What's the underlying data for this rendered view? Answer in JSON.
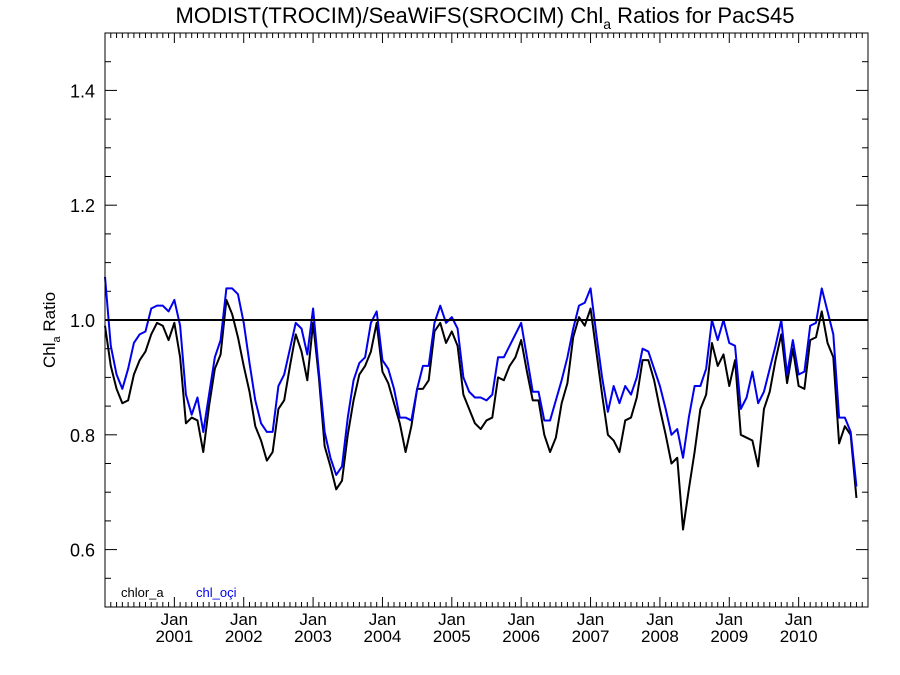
{
  "chart_data": {
    "type": "line",
    "title": "MODIST(TROCIM)/SeaWiFS(SROCIM)  Chl",
    "title_subscript": "a",
    "title_suffix": " Ratios for PacS45",
    "ylabel": "Chl",
    "ylabel_subscript": "a",
    "ylabel_suffix": " Ratio",
    "ylim": [
      0.5,
      1.5
    ],
    "y_ticks": [
      0.6,
      0.8,
      1.0,
      1.2,
      1.4
    ],
    "y_tick_labels": [
      "0.6",
      "0.8",
      "1.0",
      "1.2",
      "1.4"
    ],
    "x_range": [
      "2000-01",
      "2010-12"
    ],
    "x_ticks": [
      {
        "month": "Jan",
        "year": "2001",
        "date": "2001-01"
      },
      {
        "month": "Jan",
        "year": "2002",
        "date": "2002-01"
      },
      {
        "month": "Jan",
        "year": "2003",
        "date": "2003-01"
      },
      {
        "month": "Jan",
        "year": "2004",
        "date": "2004-01"
      },
      {
        "month": "Jan",
        "year": "2005",
        "date": "2005-01"
      },
      {
        "month": "Jan",
        "year": "2006",
        "date": "2006-01"
      },
      {
        "month": "Jan",
        "year": "2007",
        "date": "2007-01"
      },
      {
        "month": "Jan",
        "year": "2008",
        "date": "2008-01"
      },
      {
        "month": "Jan",
        "year": "2009",
        "date": "2009-01"
      },
      {
        "month": "Jan",
        "year": "2010",
        "date": "2010-01"
      }
    ],
    "reference_line": 1.0,
    "grid": false,
    "legend_position": "bottom-left",
    "series": [
      {
        "name": "chlor_a",
        "color": "#000000",
        "points": [
          [
            "2000-01",
            0.99
          ],
          [
            "2000-02",
            0.92
          ],
          [
            "2000-03",
            0.88
          ],
          [
            "2000-04",
            0.855
          ],
          [
            "2000-05",
            0.86
          ],
          [
            "2000-06",
            0.905
          ],
          [
            "2000-07",
            0.93
          ],
          [
            "2000-08",
            0.945
          ],
          [
            "2000-09",
            0.975
          ],
          [
            "2000-10",
            0.995
          ],
          [
            "2000-11",
            0.99
          ],
          [
            "2000-12",
            0.965
          ],
          [
            "2001-01",
            0.995
          ],
          [
            "2001-02",
            0.935
          ],
          [
            "2001-03",
            0.82
          ],
          [
            "2001-04",
            0.83
          ],
          [
            "2001-05",
            0.825
          ],
          [
            "2001-06",
            0.77
          ],
          [
            "2001-07",
            0.85
          ],
          [
            "2001-08",
            0.915
          ],
          [
            "2001-09",
            0.94
          ],
          [
            "2001-10",
            1.035
          ],
          [
            "2001-11",
            1.01
          ],
          [
            "2001-12",
            0.97
          ],
          [
            "2002-01",
            0.92
          ],
          [
            "2002-02",
            0.875
          ],
          [
            "2002-03",
            0.815
          ],
          [
            "2002-04",
            0.79
          ],
          [
            "2002-05",
            0.755
          ],
          [
            "2002-06",
            0.77
          ],
          [
            "2002-07",
            0.845
          ],
          [
            "2002-08",
            0.86
          ],
          [
            "2002-09",
            0.92
          ],
          [
            "2002-10",
            0.975
          ],
          [
            "2002-11",
            0.945
          ],
          [
            "2002-12",
            0.895
          ],
          [
            "2003-01",
            0.995
          ],
          [
            "2003-02",
            0.9
          ],
          [
            "2003-03",
            0.78
          ],
          [
            "2003-04",
            0.745
          ],
          [
            "2003-05",
            0.705
          ],
          [
            "2003-06",
            0.72
          ],
          [
            "2003-07",
            0.8
          ],
          [
            "2003-08",
            0.86
          ],
          [
            "2003-09",
            0.905
          ],
          [
            "2003-10",
            0.92
          ],
          [
            "2003-11",
            0.945
          ],
          [
            "2003-12",
            0.995
          ],
          [
            "2004-01",
            0.91
          ],
          [
            "2004-02",
            0.89
          ],
          [
            "2004-03",
            0.855
          ],
          [
            "2004-04",
            0.82
          ],
          [
            "2004-05",
            0.77
          ],
          [
            "2004-06",
            0.815
          ],
          [
            "2004-07",
            0.88
          ],
          [
            "2004-08",
            0.88
          ],
          [
            "2004-09",
            0.895
          ],
          [
            "2004-10",
            0.98
          ],
          [
            "2004-11",
            0.995
          ],
          [
            "2004-12",
            0.96
          ],
          [
            "2005-01",
            0.98
          ],
          [
            "2005-02",
            0.955
          ],
          [
            "2005-03",
            0.87
          ],
          [
            "2005-04",
            0.845
          ],
          [
            "2005-05",
            0.82
          ],
          [
            "2005-06",
            0.81
          ],
          [
            "2005-07",
            0.825
          ],
          [
            "2005-08",
            0.83
          ],
          [
            "2005-09",
            0.9
          ],
          [
            "2005-10",
            0.895
          ],
          [
            "2005-11",
            0.92
          ],
          [
            "2005-12",
            0.935
          ],
          [
            "2006-01",
            0.965
          ],
          [
            "2006-02",
            0.91
          ],
          [
            "2006-03",
            0.86
          ],
          [
            "2006-04",
            0.86
          ],
          [
            "2006-05",
            0.8
          ],
          [
            "2006-06",
            0.77
          ],
          [
            "2006-07",
            0.795
          ],
          [
            "2006-08",
            0.855
          ],
          [
            "2006-09",
            0.89
          ],
          [
            "2006-10",
            0.97
          ],
          [
            "2006-11",
            1.005
          ],
          [
            "2006-12",
            0.99
          ],
          [
            "2007-01",
            1.02
          ],
          [
            "2007-02",
            0.945
          ],
          [
            "2007-03",
            0.87
          ],
          [
            "2007-04",
            0.8
          ],
          [
            "2007-05",
            0.79
          ],
          [
            "2007-06",
            0.77
          ],
          [
            "2007-07",
            0.825
          ],
          [
            "2007-08",
            0.83
          ],
          [
            "2007-09",
            0.865
          ],
          [
            "2007-10",
            0.93
          ],
          [
            "2007-11",
            0.93
          ],
          [
            "2007-12",
            0.895
          ],
          [
            "2008-01",
            0.845
          ],
          [
            "2008-02",
            0.8
          ],
          [
            "2008-03",
            0.75
          ],
          [
            "2008-04",
            0.76
          ],
          [
            "2008-05",
            0.635
          ],
          [
            "2008-06",
            0.705
          ],
          [
            "2008-07",
            0.77
          ],
          [
            "2008-08",
            0.845
          ],
          [
            "2008-09",
            0.87
          ],
          [
            "2008-10",
            0.96
          ],
          [
            "2008-11",
            0.92
          ],
          [
            "2008-12",
            0.94
          ],
          [
            "2009-01",
            0.885
          ],
          [
            "2009-02",
            0.93
          ],
          [
            "2009-03",
            0.8
          ],
          [
            "2009-04",
            0.795
          ],
          [
            "2009-05",
            0.79
          ],
          [
            "2009-06",
            0.745
          ],
          [
            "2009-07",
            0.845
          ],
          [
            "2009-08",
            0.875
          ],
          [
            "2009-09",
            0.93
          ],
          [
            "2009-10",
            0.975
          ],
          [
            "2009-11",
            0.89
          ],
          [
            "2009-12",
            0.95
          ],
          [
            "2010-01",
            0.885
          ],
          [
            "2010-02",
            0.88
          ],
          [
            "2010-03",
            0.965
          ],
          [
            "2010-04",
            0.97
          ],
          [
            "2010-05",
            1.015
          ],
          [
            "2010-06",
            0.96
          ],
          [
            "2010-07",
            0.935
          ],
          [
            "2010-08",
            0.785
          ],
          [
            "2010-09",
            0.815
          ],
          [
            "2010-10",
            0.8
          ],
          [
            "2010-11",
            0.69
          ]
        ]
      },
      {
        "name": "chl_oçi",
        "color": "#0000ee",
        "points": [
          [
            "2000-01",
            1.075
          ],
          [
            "2000-02",
            0.955
          ],
          [
            "2000-03",
            0.905
          ],
          [
            "2000-04",
            0.88
          ],
          [
            "2000-05",
            0.915
          ],
          [
            "2000-06",
            0.96
          ],
          [
            "2000-07",
            0.975
          ],
          [
            "2000-08",
            0.98
          ],
          [
            "2000-09",
            1.02
          ],
          [
            "2000-10",
            1.025
          ],
          [
            "2000-11",
            1.025
          ],
          [
            "2000-12",
            1.015
          ],
          [
            "2001-01",
            1.035
          ],
          [
            "2001-02",
            0.99
          ],
          [
            "2001-03",
            0.87
          ],
          [
            "2001-04",
            0.835
          ],
          [
            "2001-05",
            0.865
          ],
          [
            "2001-06",
            0.805
          ],
          [
            "2001-07",
            0.87
          ],
          [
            "2001-08",
            0.935
          ],
          [
            "2001-09",
            0.965
          ],
          [
            "2001-10",
            1.055
          ],
          [
            "2001-11",
            1.055
          ],
          [
            "2001-12",
            1.045
          ],
          [
            "2002-01",
            0.995
          ],
          [
            "2002-02",
            0.925
          ],
          [
            "2002-03",
            0.86
          ],
          [
            "2002-04",
            0.82
          ],
          [
            "2002-05",
            0.805
          ],
          [
            "2002-06",
            0.805
          ],
          [
            "2002-07",
            0.885
          ],
          [
            "2002-08",
            0.905
          ],
          [
            "2002-09",
            0.95
          ],
          [
            "2002-10",
            0.995
          ],
          [
            "2002-11",
            0.985
          ],
          [
            "2002-12",
            0.94
          ],
          [
            "2003-01",
            1.02
          ],
          [
            "2003-02",
            0.91
          ],
          [
            "2003-03",
            0.805
          ],
          [
            "2003-04",
            0.76
          ],
          [
            "2003-05",
            0.73
          ],
          [
            "2003-06",
            0.745
          ],
          [
            "2003-07",
            0.83
          ],
          [
            "2003-08",
            0.895
          ],
          [
            "2003-09",
            0.925
          ],
          [
            "2003-10",
            0.935
          ],
          [
            "2003-11",
            0.995
          ],
          [
            "2003-12",
            1.015
          ],
          [
            "2004-01",
            0.93
          ],
          [
            "2004-02",
            0.915
          ],
          [
            "2004-03",
            0.88
          ],
          [
            "2004-04",
            0.83
          ],
          [
            "2004-05",
            0.83
          ],
          [
            "2004-06",
            0.825
          ],
          [
            "2004-07",
            0.88
          ],
          [
            "2004-08",
            0.92
          ],
          [
            "2004-09",
            0.92
          ],
          [
            "2004-10",
            0.995
          ],
          [
            "2004-11",
            1.025
          ],
          [
            "2004-12",
            0.995
          ],
          [
            "2005-01",
            1.005
          ],
          [
            "2005-02",
            0.985
          ],
          [
            "2005-03",
            0.9
          ],
          [
            "2005-04",
            0.875
          ],
          [
            "2005-05",
            0.865
          ],
          [
            "2005-06",
            0.865
          ],
          [
            "2005-07",
            0.86
          ],
          [
            "2005-08",
            0.87
          ],
          [
            "2005-09",
            0.935
          ],
          [
            "2005-10",
            0.935
          ],
          [
            "2005-11",
            0.955
          ],
          [
            "2005-12",
            0.975
          ],
          [
            "2006-01",
            0.995
          ],
          [
            "2006-02",
            0.935
          ],
          [
            "2006-03",
            0.875
          ],
          [
            "2006-04",
            0.875
          ],
          [
            "2006-05",
            0.825
          ],
          [
            "2006-06",
            0.825
          ],
          [
            "2006-07",
            0.86
          ],
          [
            "2006-08",
            0.895
          ],
          [
            "2006-09",
            0.935
          ],
          [
            "2006-10",
            0.985
          ],
          [
            "2006-11",
            1.025
          ],
          [
            "2006-12",
            1.03
          ],
          [
            "2007-01",
            1.055
          ],
          [
            "2007-02",
            0.975
          ],
          [
            "2007-03",
            0.9
          ],
          [
            "2007-04",
            0.84
          ],
          [
            "2007-05",
            0.885
          ],
          [
            "2007-06",
            0.855
          ],
          [
            "2007-07",
            0.885
          ],
          [
            "2007-08",
            0.87
          ],
          [
            "2007-09",
            0.9
          ],
          [
            "2007-10",
            0.95
          ],
          [
            "2007-11",
            0.945
          ],
          [
            "2007-12",
            0.915
          ],
          [
            "2008-01",
            0.885
          ],
          [
            "2008-02",
            0.845
          ],
          [
            "2008-03",
            0.8
          ],
          [
            "2008-04",
            0.81
          ],
          [
            "2008-05",
            0.76
          ],
          [
            "2008-06",
            0.83
          ],
          [
            "2008-07",
            0.885
          ],
          [
            "2008-08",
            0.885
          ],
          [
            "2008-09",
            0.915
          ],
          [
            "2008-10",
            1.0
          ],
          [
            "2008-11",
            0.965
          ],
          [
            "2008-12",
            1.0
          ],
          [
            "2009-01",
            0.96
          ],
          [
            "2009-02",
            0.955
          ],
          [
            "2009-03",
            0.845
          ],
          [
            "2009-04",
            0.865
          ],
          [
            "2009-05",
            0.91
          ],
          [
            "2009-06",
            0.855
          ],
          [
            "2009-07",
            0.875
          ],
          [
            "2009-08",
            0.915
          ],
          [
            "2009-09",
            0.955
          ],
          [
            "2009-10",
            1.0
          ],
          [
            "2009-11",
            0.905
          ],
          [
            "2009-12",
            0.965
          ],
          [
            "2010-01",
            0.905
          ],
          [
            "2010-02",
            0.91
          ],
          [
            "2010-03",
            0.99
          ],
          [
            "2010-04",
            0.995
          ],
          [
            "2010-05",
            1.055
          ],
          [
            "2010-06",
            1.015
          ],
          [
            "2010-07",
            0.975
          ],
          [
            "2010-08",
            0.83
          ],
          [
            "2010-09",
            0.83
          ],
          [
            "2010-10",
            0.805
          ],
          [
            "2010-11",
            0.71
          ]
        ]
      }
    ]
  }
}
